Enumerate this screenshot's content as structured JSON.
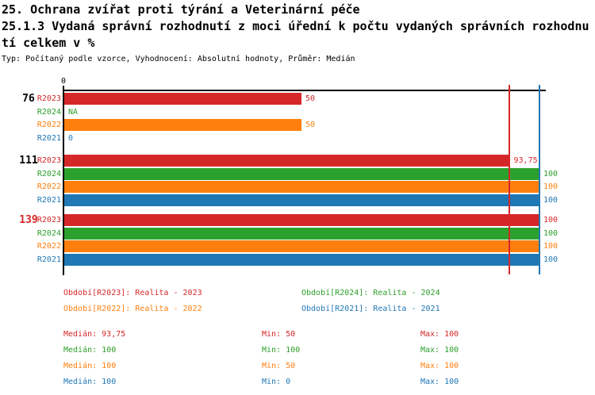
{
  "header": {
    "title": "25. Ochrana zvířat proti týrání a Veterinární péče",
    "subtitle": "25.1.3 Vydaná správní rozhodnutí z moci úřední k počtu vydaných správních rozhodnutí celkem v %",
    "meta": "Typ: Počítaný podle vzorce, Vyhodnocení: Absolutní hodnoty, Průměr: Medián"
  },
  "colors": {
    "R2023": "#d62728",
    "R2024": "#2ca02c",
    "R2022": "#ff7f0e",
    "R2021": "#1f77b4",
    "axis": "#000000"
  },
  "chart_data": {
    "type": "bar",
    "orientation": "horizontal",
    "xlim": [
      0,
      100
    ],
    "grid": false,
    "x_ticks": [
      {
        "value": 0,
        "label": "0"
      }
    ],
    "series_order": [
      "R2023",
      "R2024",
      "R2022",
      "R2021"
    ],
    "groups": [
      {
        "label": "76",
        "label_color": "#000000",
        "bars": [
          {
            "series": "R2023",
            "value": 50,
            "value_label": "50"
          },
          {
            "series": "R2024",
            "value": null,
            "value_label": "NA"
          },
          {
            "series": "R2022",
            "value": 50,
            "value_label": "50"
          },
          {
            "series": "R2021",
            "value": 0,
            "value_label": "0"
          }
        ]
      },
      {
        "label": "111",
        "label_color": "#000000",
        "bars": [
          {
            "series": "R2023",
            "value": 93.75,
            "value_label": "93,75"
          },
          {
            "series": "R2024",
            "value": 100,
            "value_label": "100"
          },
          {
            "series": "R2022",
            "value": 100,
            "value_label": "100"
          },
          {
            "series": "R2021",
            "value": 100,
            "value_label": "100"
          }
        ]
      },
      {
        "label": "139",
        "label_color": "#d62728",
        "bars": [
          {
            "series": "R2023",
            "value": 100,
            "value_label": "100"
          },
          {
            "series": "R2024",
            "value": 100,
            "value_label": "100"
          },
          {
            "series": "R2022",
            "value": 100,
            "value_label": "100"
          },
          {
            "series": "R2021",
            "value": 100,
            "value_label": "100"
          }
        ]
      }
    ],
    "median_lines": [
      {
        "series": "R2023",
        "value": 93.75
      },
      {
        "series": "R2024",
        "value": 100
      },
      {
        "series": "R2022",
        "value": 100
      },
      {
        "series": "R2021",
        "value": 100
      }
    ],
    "legend": [
      {
        "series": "R2023",
        "label": "Období[R2023]: Realita - 2023"
      },
      {
        "series": "R2024",
        "label": "Období[R2024]: Realita - 2024"
      },
      {
        "series": "R2022",
        "label": "Období[R2022]: Realita - 2022"
      },
      {
        "series": "R2021",
        "label": "Období[R2021]: Realita - 2021"
      }
    ],
    "stats": {
      "labels": {
        "median": "Medián",
        "min": "Min",
        "max": "Max"
      },
      "rows": [
        {
          "series": "R2023",
          "median": "93,75",
          "min": "50",
          "max": "100"
        },
        {
          "series": "R2024",
          "median": "100",
          "min": "100",
          "max": "100"
        },
        {
          "series": "R2022",
          "median": "100",
          "min": "50",
          "max": "100"
        },
        {
          "series": "R2021",
          "median": "100",
          "min": "0",
          "max": "100"
        }
      ]
    }
  }
}
